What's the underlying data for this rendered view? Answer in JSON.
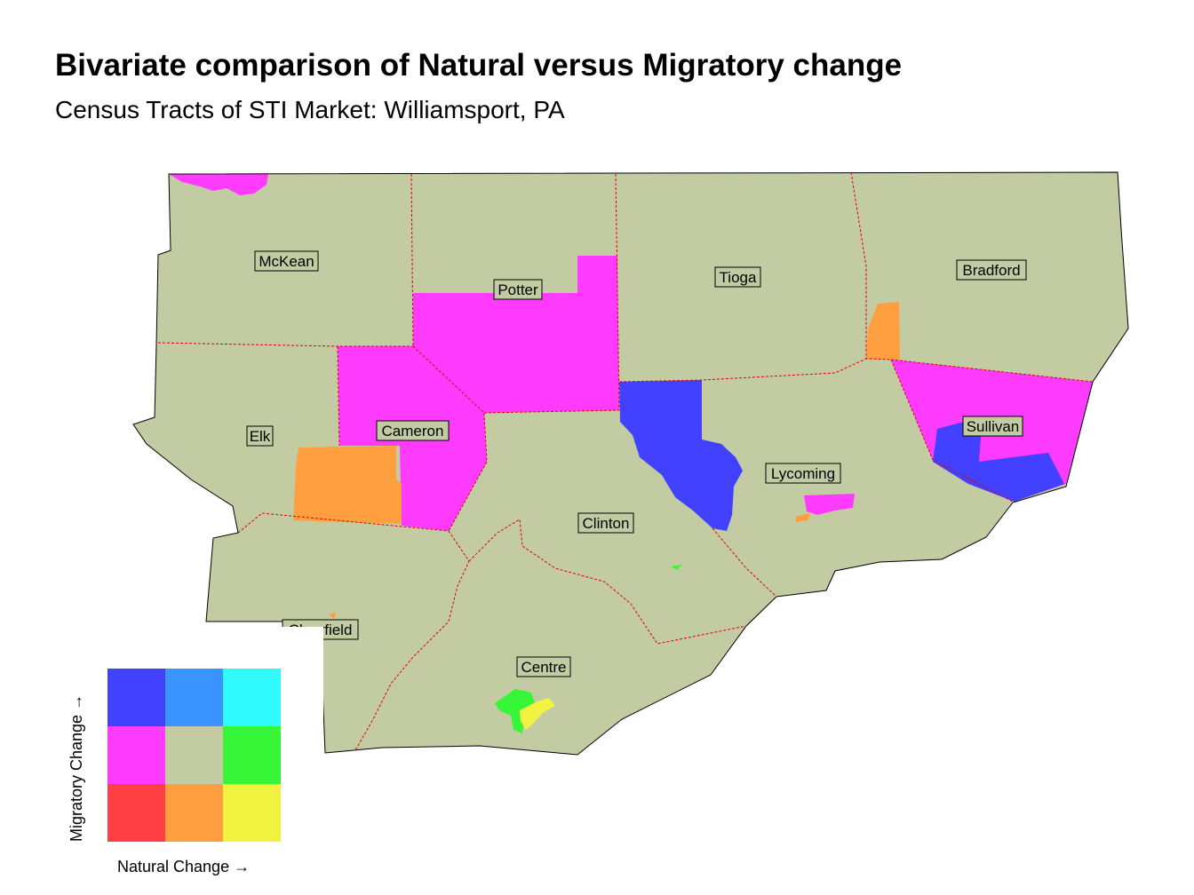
{
  "title": "Bivariate comparison of Natural versus Migratory change",
  "subtitle": "Census Tracts of STI Market: Williamsport, PA",
  "colors": {
    "base": "#c3cba3",
    "magenta": "#ff3bff",
    "blue": "#4141ff",
    "orange": "#ff9f3f",
    "green": "#37f637",
    "yellow": "#f2f240",
    "border": "#e00000"
  },
  "counties": [
    {
      "name": "McKean"
    },
    {
      "name": "Potter"
    },
    {
      "name": "Tioga"
    },
    {
      "name": "Bradford"
    },
    {
      "name": "Elk"
    },
    {
      "name": "Cameron"
    },
    {
      "name": "Sullivan"
    },
    {
      "name": "Lycoming"
    },
    {
      "name": "Clinton"
    },
    {
      "name": "Clearfield"
    },
    {
      "name": "Centre"
    }
  ],
  "legend": {
    "x_label": "Natural Change →",
    "y_label": "Migratory Change →",
    "grid": [
      [
        "#4141ff",
        "#3b93ff",
        "#2ffbff"
      ],
      [
        "#ff3bff",
        "#c3cba3",
        "#37f637"
      ],
      [
        "#ff3f44",
        "#ff9f3f",
        "#f2f240"
      ]
    ]
  }
}
